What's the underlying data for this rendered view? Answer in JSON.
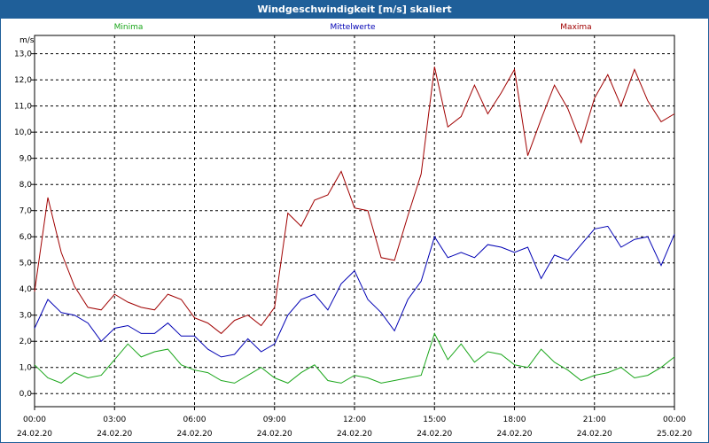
{
  "window": {
    "title": "Windgeschwindigkeit [m/s] skaliert"
  },
  "colors": {
    "frame": "#1f5f99",
    "min": "#1aa61a",
    "mean": "#0000b4",
    "max": "#a00000"
  },
  "chart_data": {
    "type": "line",
    "title": "Windgeschwindigkeit [m/s] skaliert",
    "ylabel": "m/s",
    "ylim": [
      -0.5,
      13.7
    ],
    "xlim": [
      0,
      24
    ],
    "yticks": [
      0,
      1,
      2,
      3,
      4,
      5,
      6,
      7,
      8,
      9,
      10,
      11,
      12,
      13
    ],
    "ytick_labels": [
      "0,0",
      "1,0",
      "2,0",
      "3,0",
      "4,0",
      "5,0",
      "6,0",
      "7,0",
      "8,0",
      "9,0",
      "10,0",
      "11,0",
      "12,0",
      "13,0"
    ],
    "xticks": [
      {
        "time": "00:00",
        "date": "24.02.20"
      },
      {
        "time": "03:00",
        "date": "24.02.20"
      },
      {
        "time": "06:00",
        "date": "24.02.20"
      },
      {
        "time": "09:00",
        "date": "24.02.20"
      },
      {
        "time": "12:00",
        "date": "24.02.20"
      },
      {
        "time": "15:00",
        "date": "24.02.20"
      },
      {
        "time": "18:00",
        "date": "24.02.20"
      },
      {
        "time": "21:00",
        "date": "24.02.20"
      },
      {
        "time": "00:00",
        "date": "25.02.20"
      }
    ],
    "grid": true,
    "legend_position": "top",
    "x_hours": [
      0,
      0.5,
      1,
      1.5,
      2,
      2.5,
      3,
      3.5,
      4,
      4.5,
      5,
      5.5,
      6,
      6.5,
      7,
      7.5,
      8,
      8.5,
      9,
      9.5,
      10,
      10.5,
      11,
      11.5,
      12,
      12.5,
      13,
      13.5,
      14,
      14.5,
      15,
      15.5,
      16,
      16.5,
      17,
      17.5,
      18,
      18.5,
      19,
      19.5,
      20,
      20.5,
      21,
      21.5,
      22,
      22.5,
      23,
      23.5,
      24
    ],
    "series": [
      {
        "name": "Minima",
        "color": "#1aa61a",
        "values": [
          1.1,
          0.6,
          0.4,
          0.8,
          0.6,
          0.7,
          1.3,
          1.9,
          1.4,
          1.6,
          1.7,
          1.1,
          0.9,
          0.8,
          0.5,
          0.4,
          0.7,
          1.0,
          0.6,
          0.4,
          0.8,
          1.1,
          0.5,
          0.4,
          0.7,
          0.6,
          0.4,
          0.5,
          0.6,
          0.7,
          2.3,
          1.3,
          1.9,
          1.2,
          1.6,
          1.5,
          1.1,
          1.0,
          1.7,
          1.2,
          0.9,
          0.5,
          0.7,
          0.8,
          1.0,
          0.6,
          0.7,
          1.0,
          1.4
        ]
      },
      {
        "name": "Mittelwerte",
        "color": "#0000b4",
        "values": [
          2.5,
          3.6,
          3.1,
          3.0,
          2.7,
          2.0,
          2.5,
          2.6,
          2.3,
          2.3,
          2.7,
          2.2,
          2.2,
          1.7,
          1.4,
          1.5,
          2.1,
          1.6,
          1.9,
          3.0,
          3.6,
          3.8,
          3.2,
          4.2,
          4.7,
          3.6,
          3.1,
          2.4,
          3.6,
          4.3,
          6.0,
          5.2,
          5.4,
          5.2,
          5.7,
          5.6,
          5.4,
          5.6,
          4.4,
          5.3,
          5.1,
          5.7,
          6.3,
          6.4,
          5.6,
          5.9,
          6.0,
          4.9,
          6.1
        ]
      },
      {
        "name": "Maxima",
        "color": "#a00000",
        "values": [
          3.9,
          7.5,
          5.4,
          4.1,
          3.3,
          3.2,
          3.8,
          3.5,
          3.3,
          3.2,
          3.8,
          3.6,
          2.9,
          2.7,
          2.3,
          2.8,
          3.0,
          2.6,
          3.3,
          6.9,
          6.4,
          7.4,
          7.6,
          8.5,
          7.1,
          7.0,
          5.2,
          5.1,
          6.8,
          8.4,
          12.5,
          10.2,
          10.6,
          11.8,
          10.7,
          11.5,
          12.4,
          9.1,
          10.5,
          11.8,
          10.9,
          9.6,
          11.3,
          12.2,
          11.0,
          12.4,
          11.2,
          10.4,
          10.7
        ]
      }
    ]
  }
}
